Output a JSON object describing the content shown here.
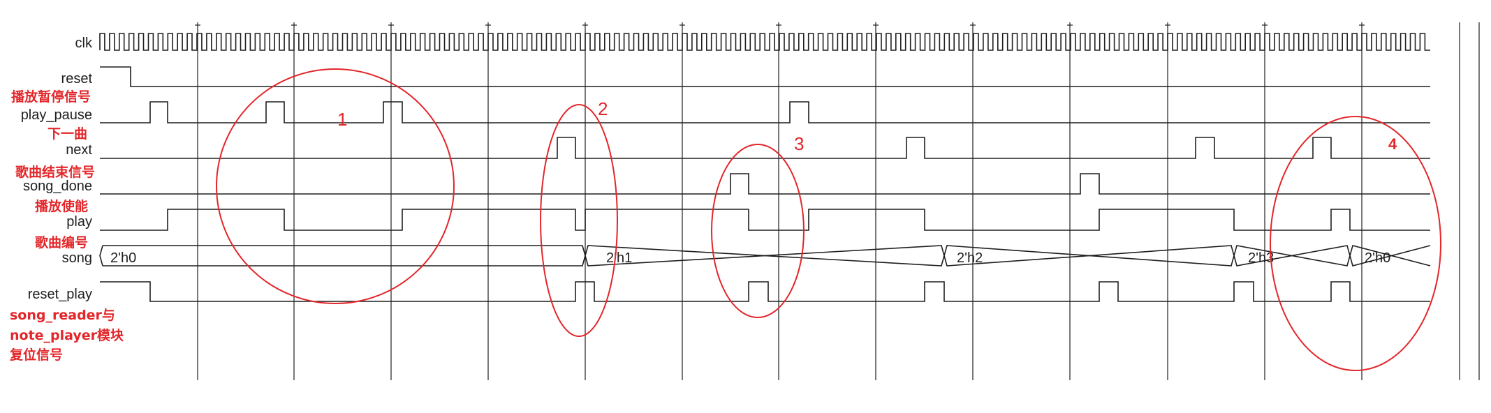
{
  "signals": {
    "clk": "clk",
    "reset": "reset",
    "play_pause": "play_pause",
    "next": "next",
    "song_done": "song_done",
    "play": "play",
    "song": "song",
    "reset_play": "reset_play"
  },
  "cn_labels": {
    "play_pause_desc": "播放暂停信号",
    "next_desc": "下一曲",
    "song_done_desc": "歌曲结束信号",
    "play_desc": "播放使能",
    "song_desc": "歌曲编号",
    "reset_desc_line1": "song_reader与",
    "reset_desc_line2": "note_player模块",
    "reset_desc_line3": "复位信号"
  },
  "song_values": [
    "2'h0",
    "2'h1",
    "2'h2",
    "2'h3",
    "2'h0"
  ],
  "annotations": [
    "1",
    "2",
    "3",
    "4"
  ],
  "colors": {
    "signal": "#1f1f1f",
    "grid": "#1f1f1f",
    "annotation": "#e3262a",
    "background": "#ffffff"
  }
}
